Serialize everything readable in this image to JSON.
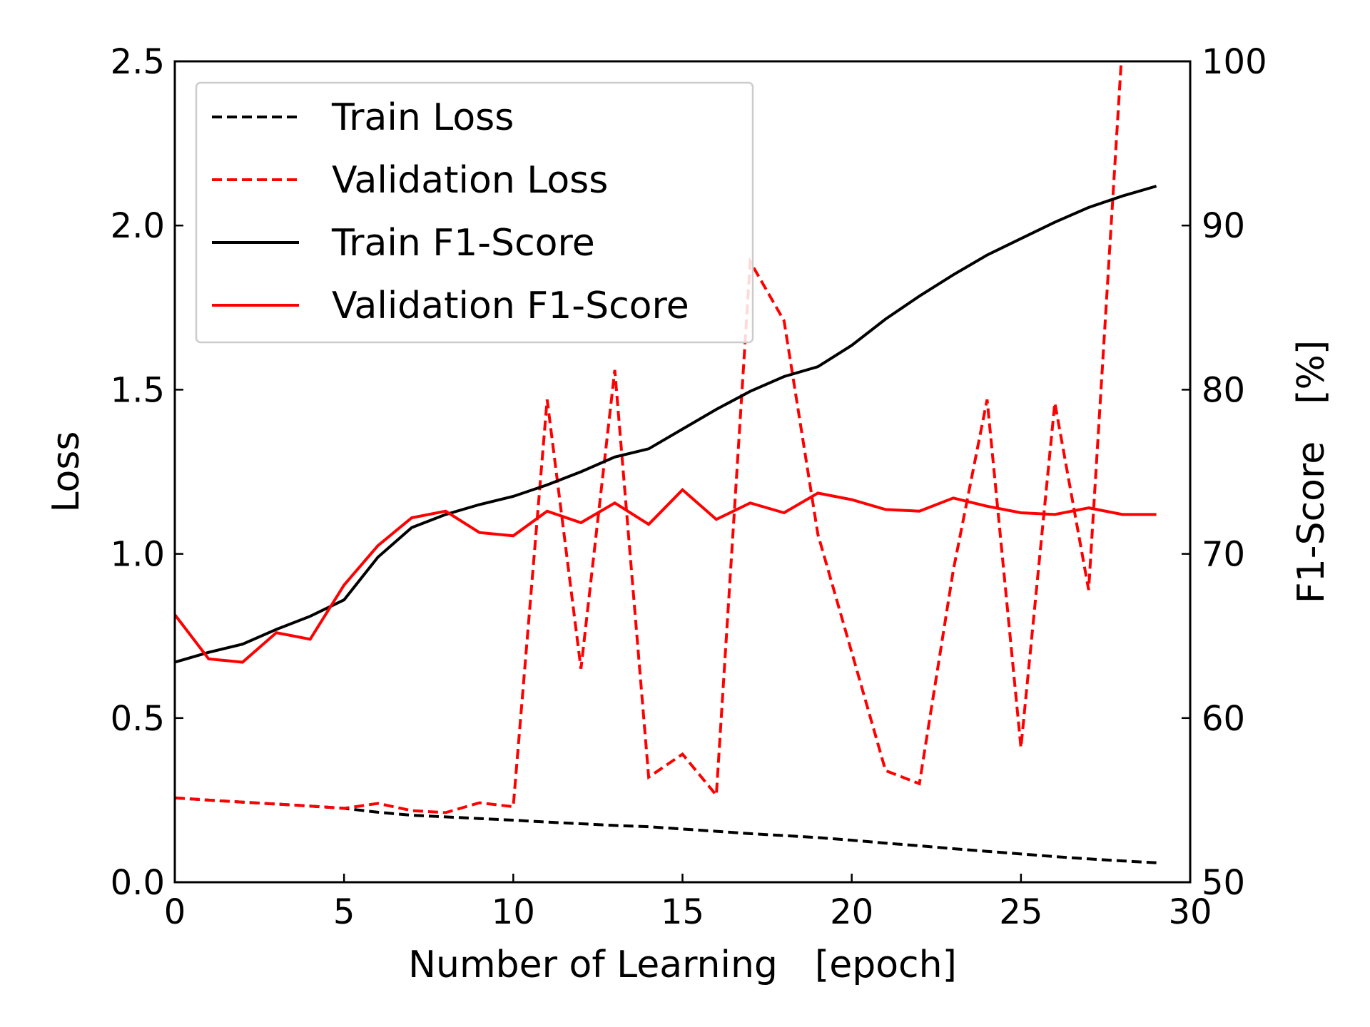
{
  "chart_data": {
    "type": "line",
    "title": "",
    "xlabel": "Number of Learning　[epoch]",
    "ylabel_left": "Loss",
    "ylabel_right": "F1-Score　[%]",
    "xlim": [
      0,
      30
    ],
    "ylim_left": [
      0,
      2.5
    ],
    "ylim_right": [
      50,
      100
    ],
    "xticks": [
      "0",
      "5",
      "10",
      "15",
      "20",
      "25",
      "30"
    ],
    "yticks_left": [
      "0.0",
      "0.5",
      "1.0",
      "1.5",
      "2.0",
      "2.5"
    ],
    "yticks_right": [
      "50",
      "60",
      "70",
      "80",
      "90",
      "100"
    ],
    "grid": false,
    "legend_position": "top-left",
    "series": [
      {
        "name": "Train Loss",
        "axis": "left",
        "style": "dashed",
        "color": "#000000",
        "x": [
          0,
          1,
          2,
          3,
          4,
          5,
          6,
          7,
          8,
          9,
          10,
          11,
          12,
          13,
          14,
          15,
          16,
          17,
          18,
          19,
          20,
          21,
          22,
          23,
          24,
          25,
          26,
          27,
          28,
          29
        ],
        "values": [
          0.257,
          0.25,
          0.244,
          0.238,
          0.232,
          0.225,
          0.213,
          0.204,
          0.199,
          0.194,
          0.189,
          0.183,
          0.178,
          0.173,
          0.169,
          0.162,
          0.155,
          0.148,
          0.142,
          0.136,
          0.128,
          0.119,
          0.111,
          0.102,
          0.094,
          0.086,
          0.078,
          0.071,
          0.065,
          0.059
        ]
      },
      {
        "name": "Validation Loss",
        "axis": "left",
        "style": "dashed",
        "color": "#ff0000",
        "x": [
          0,
          1,
          2,
          3,
          4,
          5,
          6,
          7,
          8,
          9,
          10,
          11,
          12,
          13,
          14,
          15,
          16,
          17,
          18,
          19,
          20,
          21,
          22,
          23,
          24,
          25,
          26,
          27,
          28,
          29
        ],
        "values": [
          0.257,
          0.25,
          0.244,
          0.238,
          0.232,
          0.225,
          0.24,
          0.218,
          0.212,
          0.242,
          0.23,
          1.47,
          0.65,
          1.56,
          0.32,
          0.39,
          0.265,
          1.89,
          1.71,
          1.06,
          0.7,
          0.34,
          0.3,
          0.95,
          1.47,
          0.41,
          1.46,
          0.89,
          2.56,
          2.56
        ]
      },
      {
        "name": "Train F1-Score",
        "axis": "right",
        "style": "solid",
        "color": "#000000",
        "x": [
          0,
          1,
          2,
          3,
          4,
          5,
          6,
          7,
          8,
          9,
          10,
          11,
          12,
          13,
          14,
          15,
          16,
          17,
          18,
          19,
          20,
          21,
          22,
          23,
          24,
          25,
          26,
          27,
          28,
          29
        ],
        "values": [
          63.4,
          64.0,
          64.5,
          65.4,
          66.2,
          67.2,
          69.8,
          71.6,
          72.4,
          73.0,
          73.5,
          74.2,
          75.0,
          75.9,
          76.4,
          77.6,
          78.8,
          79.9,
          80.8,
          81.4,
          82.7,
          84.3,
          85.7,
          87.0,
          88.2,
          89.2,
          90.2,
          91.1,
          91.8,
          92.4
        ]
      },
      {
        "name": "Validation F1-Score",
        "axis": "right",
        "style": "solid",
        "color": "#ff0000",
        "x": [
          0,
          1,
          2,
          3,
          4,
          5,
          6,
          7,
          8,
          9,
          10,
          11,
          12,
          13,
          14,
          15,
          16,
          17,
          18,
          19,
          20,
          21,
          22,
          23,
          24,
          25,
          26,
          27,
          28,
          29
        ],
        "values": [
          66.3,
          63.6,
          63.4,
          65.2,
          64.8,
          68.1,
          70.5,
          72.2,
          72.6,
          71.3,
          71.1,
          72.6,
          71.9,
          73.1,
          71.8,
          73.9,
          72.1,
          73.1,
          72.5,
          73.7,
          73.3,
          72.7,
          72.6,
          73.4,
          72.9,
          72.5,
          72.4,
          72.8,
          72.4,
          72.4
        ]
      }
    ]
  }
}
